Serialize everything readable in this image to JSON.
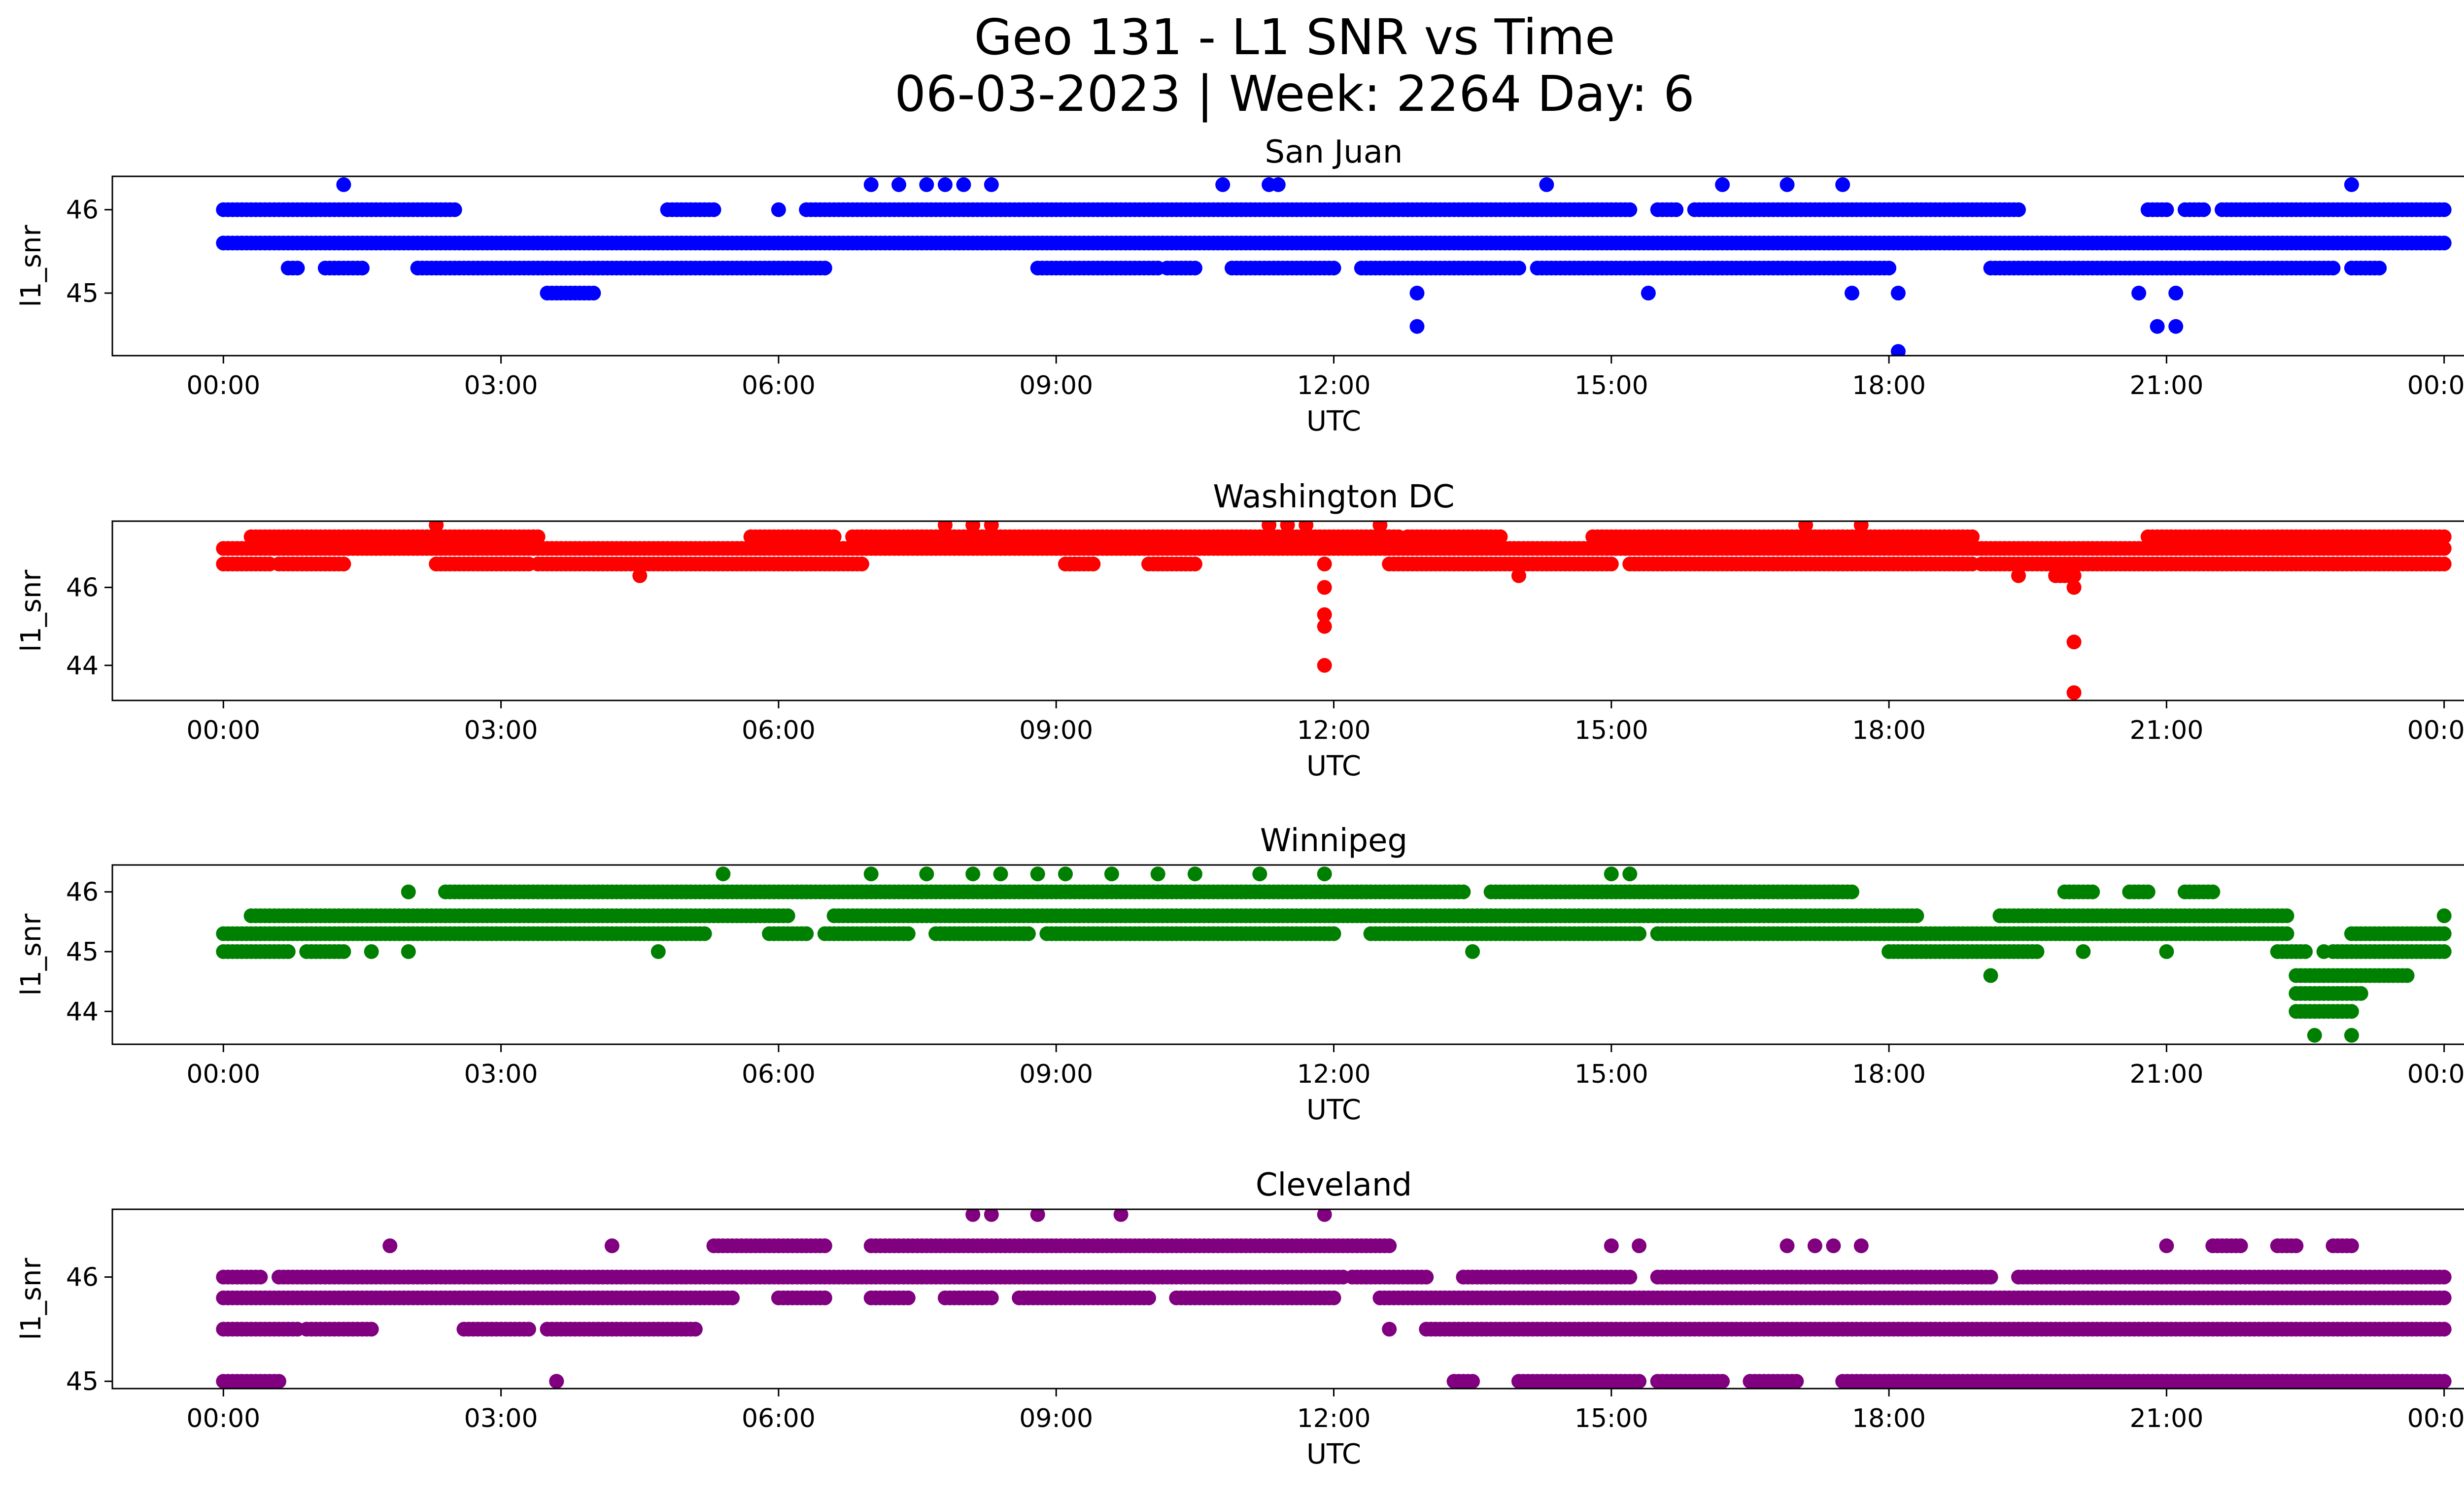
{
  "figure": {
    "title_line1": "Geo 131 - L1 SNR vs Time",
    "title_line2": "06-03-2023 | Week: 2264 Day: 6"
  },
  "chart_data": [
    {
      "type": "scatter",
      "title": "San Juan",
      "xlabel": "UTC",
      "ylabel": "l1_snr",
      "color": "#0000ff",
      "x_ticks": [
        "00:00",
        "03:00",
        "06:00",
        "09:00",
        "12:00",
        "15:00",
        "18:00",
        "21:00",
        "00:00"
      ],
      "xlim_hours": [
        -1.2,
        25.2
      ],
      "y_ticks": [
        45,
        46
      ],
      "ylim": [
        44.25,
        46.4
      ],
      "bands": [
        {
          "y": 46.0,
          "segments": [
            [
              0.0,
              2.5
            ],
            [
              4.8,
              5.3
            ],
            [
              6.0,
              6.0
            ],
            [
              6.3,
              12.8
            ],
            [
              12.8,
              15.2
            ],
            [
              15.5,
              15.7
            ],
            [
              15.9,
              19.4
            ],
            [
              20.8,
              21.0
            ],
            [
              21.2,
              21.4
            ],
            [
              21.6,
              24.0
            ]
          ]
        },
        {
          "y": 45.6,
          "segments": [
            [
              0.0,
              24.0
            ]
          ]
        },
        {
          "y": 45.3,
          "segments": [
            [
              0.7,
              0.8
            ],
            [
              1.1,
              1.5
            ],
            [
              2.1,
              6.5
            ],
            [
              8.8,
              10.1
            ],
            [
              10.2,
              10.5
            ],
            [
              10.9,
              12.0
            ],
            [
              12.3,
              14.0
            ],
            [
              14.2,
              18.0
            ],
            [
              19.1,
              22.8
            ],
            [
              23.0,
              23.3
            ]
          ]
        },
        {
          "y": 45.0,
          "segments": [
            [
              3.5,
              4.0
            ]
          ]
        }
      ],
      "points": [
        {
          "x": 1.3,
          "y": 46.3
        },
        {
          "x": 7.0,
          "y": 46.3
        },
        {
          "x": 7.3,
          "y": 46.3
        },
        {
          "x": 7.6,
          "y": 46.3
        },
        {
          "x": 7.8,
          "y": 46.3
        },
        {
          "x": 8.0,
          "y": 46.3
        },
        {
          "x": 8.3,
          "y": 46.3
        },
        {
          "x": 10.8,
          "y": 46.3
        },
        {
          "x": 11.3,
          "y": 46.3
        },
        {
          "x": 11.4,
          "y": 46.3
        },
        {
          "x": 14.3,
          "y": 46.3
        },
        {
          "x": 16.2,
          "y": 46.3
        },
        {
          "x": 16.9,
          "y": 46.3
        },
        {
          "x": 17.5,
          "y": 46.3
        },
        {
          "x": 23.0,
          "y": 46.3
        },
        {
          "x": 12.9,
          "y": 45.0
        },
        {
          "x": 15.4,
          "y": 45.0
        },
        {
          "x": 17.6,
          "y": 45.0
        },
        {
          "x": 18.1,
          "y": 45.0
        },
        {
          "x": 20.7,
          "y": 45.0
        },
        {
          "x": 21.1,
          "y": 45.0
        },
        {
          "x": 12.9,
          "y": 44.6
        },
        {
          "x": 20.9,
          "y": 44.6
        },
        {
          "x": 21.1,
          "y": 44.6
        },
        {
          "x": 18.1,
          "y": 44.3
        }
      ]
    },
    {
      "type": "scatter",
      "title": "Washington DC",
      "xlabel": "UTC",
      "ylabel": "l1_snr",
      "color": "#ff0000",
      "x_ticks": [
        "00:00",
        "03:00",
        "06:00",
        "09:00",
        "12:00",
        "15:00",
        "18:00",
        "21:00",
        "00:00"
      ],
      "xlim_hours": [
        -1.2,
        25.2
      ],
      "y_ticks": [
        44,
        46
      ],
      "ylim": [
        43.1,
        47.7
      ],
      "bands": [
        {
          "y": 47.3,
          "segments": [
            [
              0.3,
              3.4
            ],
            [
              5.7,
              6.6
            ],
            [
              6.8,
              12.7
            ],
            [
              12.8,
              13.8
            ],
            [
              14.8,
              18.9
            ],
            [
              20.8,
              24.0
            ]
          ]
        },
        {
          "y": 47.0,
          "segments": [
            [
              0.0,
              24.0
            ]
          ]
        },
        {
          "y": 46.6,
          "segments": [
            [
              0.0,
              0.5
            ],
            [
              0.6,
              1.3
            ],
            [
              2.3,
              3.3
            ],
            [
              3.4,
              6.9
            ],
            [
              9.1,
              9.4
            ],
            [
              10.0,
              10.5
            ],
            [
              12.6,
              15.0
            ],
            [
              15.2,
              18.9
            ],
            [
              19.0,
              24.0
            ]
          ]
        },
        {
          "y": 46.3,
          "segments": [
            [
              19.8,
              20.0
            ]
          ]
        }
      ],
      "points": [
        {
          "x": 2.3,
          "y": 47.6
        },
        {
          "x": 7.8,
          "y": 47.6
        },
        {
          "x": 8.1,
          "y": 47.6
        },
        {
          "x": 8.3,
          "y": 47.6
        },
        {
          "x": 11.3,
          "y": 47.6
        },
        {
          "x": 11.5,
          "y": 47.6
        },
        {
          "x": 11.7,
          "y": 47.6
        },
        {
          "x": 12.5,
          "y": 47.6
        },
        {
          "x": 17.1,
          "y": 47.6
        },
        {
          "x": 17.7,
          "y": 47.6
        },
        {
          "x": 4.5,
          "y": 46.3
        },
        {
          "x": 14.0,
          "y": 46.3
        },
        {
          "x": 19.4,
          "y": 46.3
        },
        {
          "x": 11.9,
          "y": 46.6
        },
        {
          "x": 11.9,
          "y": 46.0
        },
        {
          "x": 11.9,
          "y": 45.3
        },
        {
          "x": 11.9,
          "y": 45.0
        },
        {
          "x": 11.9,
          "y": 44.0
        },
        {
          "x": 20.0,
          "y": 46.6
        },
        {
          "x": 20.0,
          "y": 46.0
        },
        {
          "x": 20.0,
          "y": 44.6
        },
        {
          "x": 20.0,
          "y": 43.3
        }
      ]
    },
    {
      "type": "scatter",
      "title": "Winnipeg",
      "xlabel": "UTC",
      "ylabel": "l1_snr",
      "color": "#008000",
      "x_ticks": [
        "00:00",
        "03:00",
        "06:00",
        "09:00",
        "12:00",
        "15:00",
        "18:00",
        "21:00",
        "00:00"
      ],
      "xlim_hours": [
        -1.2,
        25.2
      ],
      "y_ticks": [
        44,
        45,
        46
      ],
      "ylim": [
        43.45,
        46.45
      ],
      "bands": [
        {
          "y": 46.0,
          "segments": [
            [
              2.4,
              13.4
            ],
            [
              13.7,
              17.6
            ],
            [
              19.9,
              20.2
            ],
            [
              20.6,
              20.8
            ],
            [
              21.2,
              21.5
            ]
          ]
        },
        {
          "y": 45.6,
          "segments": [
            [
              0.3,
              6.1
            ],
            [
              6.6,
              18.3
            ],
            [
              19.2,
              22.3
            ]
          ]
        },
        {
          "y": 45.3,
          "segments": [
            [
              0.0,
              5.2
            ],
            [
              5.9,
              6.3
            ],
            [
              6.5,
              7.4
            ],
            [
              7.7,
              8.7
            ],
            [
              8.9,
              12.0
            ],
            [
              12.4,
              15.3
            ],
            [
              15.5,
              22.3
            ],
            [
              23.0,
              24.0
            ]
          ]
        },
        {
          "y": 45.0,
          "segments": [
            [
              0.0,
              0.7
            ],
            [
              0.9,
              1.3
            ],
            [
              18.0,
              19.6
            ],
            [
              22.2,
              22.5
            ],
            [
              22.8,
              24.0
            ]
          ]
        },
        {
          "y": 44.6,
          "segments": [
            [
              22.4,
              23.6
            ]
          ]
        },
        {
          "y": 44.3,
          "segments": [
            [
              22.4,
              23.1
            ]
          ]
        },
        {
          "y": 44.0,
          "segments": [
            [
              22.4,
              23.0
            ]
          ]
        }
      ],
      "points": [
        {
          "x": 5.4,
          "y": 46.3
        },
        {
          "x": 7.0,
          "y": 46.3
        },
        {
          "x": 7.6,
          "y": 46.3
        },
        {
          "x": 8.1,
          "y": 46.3
        },
        {
          "x": 8.4,
          "y": 46.3
        },
        {
          "x": 8.8,
          "y": 46.3
        },
        {
          "x": 9.1,
          "y": 46.3
        },
        {
          "x": 9.6,
          "y": 46.3
        },
        {
          "x": 10.1,
          "y": 46.3
        },
        {
          "x": 10.5,
          "y": 46.3
        },
        {
          "x": 11.2,
          "y": 46.3
        },
        {
          "x": 11.9,
          "y": 46.3
        },
        {
          "x": 15.0,
          "y": 46.3
        },
        {
          "x": 15.2,
          "y": 46.3
        },
        {
          "x": 2.0,
          "y": 46.0
        },
        {
          "x": 17.4,
          "y": 46.0
        },
        {
          "x": 1.6,
          "y": 45.0
        },
        {
          "x": 2.0,
          "y": 45.0
        },
        {
          "x": 4.7,
          "y": 45.0
        },
        {
          "x": 13.5,
          "y": 45.0
        },
        {
          "x": 20.1,
          "y": 45.0
        },
        {
          "x": 21.0,
          "y": 45.0
        },
        {
          "x": 22.7,
          "y": 45.0
        },
        {
          "x": 19.1,
          "y": 44.6
        },
        {
          "x": 22.6,
          "y": 43.6
        },
        {
          "x": 23.0,
          "y": 43.6
        },
        {
          "x": 24.0,
          "y": 45.6
        }
      ]
    },
    {
      "type": "scatter",
      "title": "Cleveland",
      "xlabel": "UTC",
      "ylabel": "l1_snr",
      "color": "#800080",
      "x_ticks": [
        "00:00",
        "03:00",
        "06:00",
        "09:00",
        "12:00",
        "15:00",
        "18:00",
        "21:00",
        "00:00"
      ],
      "xlim_hours": [
        -1.2,
        25.2
      ],
      "y_ticks": [
        45,
        46
      ],
      "ylim": [
        44.93,
        46.65
      ],
      "bands": [
        {
          "y": 46.0,
          "segments": [
            [
              0.0,
              0.4
            ],
            [
              0.6,
              12.1
            ],
            [
              12.2,
              13.0
            ],
            [
              13.4,
              15.2
            ],
            [
              15.5,
              19.1
            ],
            [
              19.4,
              24.0
            ]
          ]
        },
        {
          "y": 45.8,
          "segments": [
            [
              0.0,
              5.5
            ],
            [
              6.0,
              6.5
            ],
            [
              7.0,
              7.4
            ],
            [
              7.8,
              8.3
            ],
            [
              8.6,
              10.0
            ],
            [
              10.3,
              12.0
            ],
            [
              12.5,
              24.0
            ]
          ]
        },
        {
          "y": 45.5,
          "segments": [
            [
              0.0,
              0.8
            ],
            [
              0.9,
              1.6
            ],
            [
              2.6,
              3.3
            ],
            [
              3.5,
              5.1
            ],
            [
              13.0,
              24.0
            ]
          ]
        },
        {
          "y": 45.0,
          "segments": [
            [
              0.0,
              0.6
            ],
            [
              3.6,
              3.6
            ],
            [
              13.3,
              13.5
            ],
            [
              14.0,
              15.3
            ],
            [
              15.5,
              16.2
            ],
            [
              16.5,
              17.0
            ],
            [
              17.5,
              24.0
            ]
          ]
        },
        {
          "y": 46.3,
          "segments": [
            [
              5.3,
              6.5
            ],
            [
              7.0,
              12.6
            ],
            [
              21.5,
              21.8
            ],
            [
              22.2,
              22.4
            ],
            [
              22.8,
              23.0
            ]
          ]
        }
      ],
      "points": [
        {
          "x": 1.8,
          "y": 46.3
        },
        {
          "x": 4.2,
          "y": 46.3
        },
        {
          "x": 15.0,
          "y": 46.3
        },
        {
          "x": 15.3,
          "y": 46.3
        },
        {
          "x": 16.9,
          "y": 46.3
        },
        {
          "x": 17.2,
          "y": 46.3
        },
        {
          "x": 17.4,
          "y": 46.3
        },
        {
          "x": 17.7,
          "y": 46.3
        },
        {
          "x": 21.0,
          "y": 46.3
        },
        {
          "x": 8.1,
          "y": 46.6
        },
        {
          "x": 8.3,
          "y": 46.6
        },
        {
          "x": 8.8,
          "y": 46.6
        },
        {
          "x": 9.7,
          "y": 46.6
        },
        {
          "x": 11.9,
          "y": 46.6
        },
        {
          "x": 12.6,
          "y": 45.5
        },
        {
          "x": 3.6,
          "y": 45.0
        }
      ]
    }
  ]
}
